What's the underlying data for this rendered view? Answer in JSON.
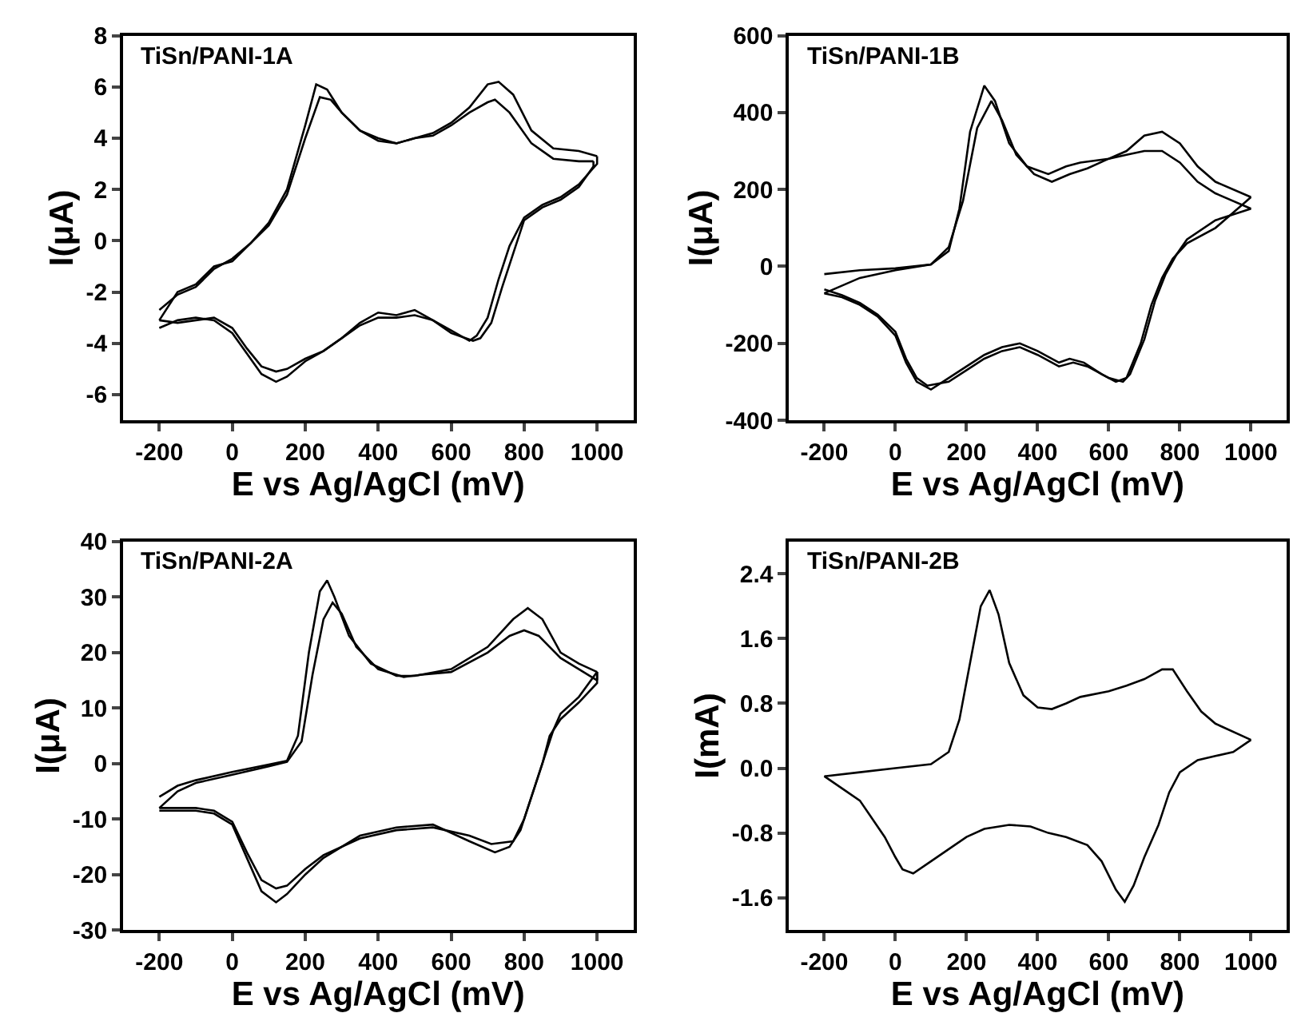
{
  "chart_data": [
    {
      "type": "line",
      "title": "TiSn/PANI-1A",
      "xlabel": "E vs Ag/AgCl (mV)",
      "ylabel": "I(μA)",
      "xlim": [
        -300,
        1100
      ],
      "xticks": [
        -200,
        0,
        200,
        400,
        600,
        800,
        1000
      ],
      "ylim": [
        -7,
        8
      ],
      "yticks": [
        -6,
        -4,
        -2,
        0,
        2,
        4,
        6,
        8
      ],
      "grid": false,
      "marker": "none",
      "line_style": "solid",
      "series": [
        {
          "color": "#000000",
          "x": [
            -200,
            -150,
            -100,
            -50,
            0,
            50,
            100,
            150,
            200,
            230,
            260,
            300,
            350,
            400,
            450,
            500,
            550,
            600,
            650,
            700,
            730,
            770,
            820,
            880,
            950,
            1000
          ],
          "values": [
            -2.7,
            -2.1,
            -1.8,
            -1.1,
            -0.7,
            -0.1,
            0.7,
            2.0,
            4.5,
            6.1,
            5.9,
            5.0,
            4.3,
            4.0,
            3.8,
            4.0,
            4.2,
            4.6,
            5.2,
            6.1,
            6.2,
            5.7,
            4.3,
            3.6,
            3.5,
            3.3
          ]
        },
        {
          "color": "#000000",
          "x": [
            1000,
            1000,
            950,
            900,
            850,
            800,
            760,
            730,
            700,
            670,
            650,
            600,
            550,
            500,
            450,
            400,
            350,
            300,
            250,
            200,
            150,
            120,
            80,
            40,
            0,
            -50,
            -100,
            -150,
            -200
          ],
          "values": [
            3.3,
            3.0,
            2.2,
            1.7,
            1.4,
            0.9,
            -0.2,
            -1.5,
            -3.0,
            -3.7,
            -3.9,
            -3.5,
            -3.1,
            -2.7,
            -2.9,
            -2.8,
            -3.2,
            -3.8,
            -4.3,
            -4.7,
            -5.3,
            -5.5,
            -5.2,
            -4.4,
            -3.6,
            -3.1,
            -3.0,
            -3.1,
            -3.4
          ]
        },
        {
          "color": "#000000",
          "x": [
            -200,
            -150,
            -100,
            -50,
            0,
            50,
            100,
            150,
            200,
            240,
            270,
            300,
            350,
            400,
            450,
            500,
            550,
            600,
            650,
            700,
            720,
            760,
            820,
            880,
            950,
            990
          ],
          "values": [
            -3.1,
            -2.0,
            -1.7,
            -1.0,
            -0.8,
            -0.1,
            0.6,
            1.8,
            4.0,
            5.6,
            5.5,
            5.0,
            4.3,
            3.9,
            3.8,
            4.0,
            4.1,
            4.5,
            5.0,
            5.4,
            5.5,
            5.0,
            3.8,
            3.2,
            3.1,
            3.1
          ]
        },
        {
          "color": "#000000",
          "x": [
            990,
            990,
            950,
            900,
            850,
            800,
            770,
            740,
            710,
            680,
            660,
            600,
            550,
            500,
            450,
            400,
            350,
            300,
            250,
            200,
            150,
            120,
            80,
            40,
            0,
            -50,
            -100,
            -150,
            -200
          ],
          "values": [
            3.1,
            2.9,
            2.1,
            1.6,
            1.3,
            0.8,
            -0.5,
            -1.8,
            -3.2,
            -3.8,
            -3.9,
            -3.6,
            -3.1,
            -2.9,
            -3.0,
            -3.0,
            -3.3,
            -3.8,
            -4.3,
            -4.6,
            -5.0,
            -5.1,
            -4.9,
            -4.2,
            -3.4,
            -3.0,
            -3.1,
            -3.2,
            -3.1
          ]
        }
      ]
    },
    {
      "type": "line",
      "title": "TiSn/PANI-1B",
      "xlabel": "E vs Ag/AgCl (mV)",
      "ylabel": "I(μA)",
      "xlim": [
        -300,
        1100
      ],
      "xticks": [
        -200,
        0,
        200,
        400,
        600,
        800,
        1000
      ],
      "ylim": [
        -400,
        600
      ],
      "yticks": [
        -400,
        -200,
        0,
        200,
        400,
        600
      ],
      "grid": false,
      "marker": "none",
      "line_style": "solid",
      "series": [
        {
          "color": "#000000",
          "x": [
            -200,
            -100,
            0,
            100,
            150,
            180,
            210,
            250,
            280,
            320,
            370,
            430,
            480,
            520,
            600,
            650,
            700,
            750,
            800,
            850,
            900,
            1000
          ],
          "values": [
            -20,
            -10,
            -5,
            5,
            40,
            150,
            350,
            470,
            430,
            320,
            260,
            240,
            260,
            270,
            280,
            300,
            340,
            350,
            320,
            260,
            220,
            180
          ]
        },
        {
          "color": "#000000",
          "x": [
            1000,
            900,
            820,
            780,
            750,
            720,
            690,
            650,
            620,
            580,
            530,
            490,
            460,
            400,
            350,
            300,
            250,
            200,
            150,
            100,
            60,
            30,
            0,
            -50,
            -100,
            -150,
            -200
          ],
          "values": [
            180,
            100,
            60,
            20,
            -30,
            -100,
            -200,
            -290,
            -300,
            -280,
            -250,
            -240,
            -250,
            -220,
            -200,
            -210,
            -230,
            -260,
            -290,
            -320,
            -300,
            -250,
            -180,
            -130,
            -100,
            -80,
            -70
          ]
        },
        {
          "color": "#000000",
          "x": [
            -200,
            -100,
            0,
            100,
            150,
            190,
            230,
            270,
            300,
            340,
            390,
            440,
            490,
            540,
            600,
            650,
            700,
            750,
            800,
            850,
            900,
            1000
          ],
          "values": [
            -70,
            -30,
            -10,
            5,
            50,
            170,
            360,
            430,
            380,
            290,
            240,
            220,
            240,
            255,
            280,
            290,
            300,
            300,
            270,
            220,
            190,
            150
          ]
        },
        {
          "color": "#000000",
          "x": [
            1000,
            900,
            820,
            790,
            760,
            730,
            700,
            660,
            640,
            600,
            540,
            500,
            460,
            400,
            350,
            300,
            250,
            200,
            150,
            90,
            60,
            30,
            0,
            -50,
            -100,
            -150,
            -200
          ],
          "values": [
            150,
            120,
            70,
            30,
            -20,
            -90,
            -190,
            -280,
            -300,
            -290,
            -260,
            -250,
            -260,
            -230,
            -210,
            -220,
            -240,
            -270,
            -300,
            -310,
            -290,
            -240,
            -170,
            -125,
            -95,
            -75,
            -60
          ]
        }
      ]
    },
    {
      "type": "line",
      "title": "TiSn/PANI-2A",
      "xlabel": "E vs Ag/AgCl (mV)",
      "ylabel": "I(μA)",
      "xlim": [
        -300,
        1100
      ],
      "xticks": [
        -200,
        0,
        200,
        400,
        600,
        800,
        1000
      ],
      "ylim": [
        -30,
        40
      ],
      "yticks": [
        -30,
        -20,
        -10,
        0,
        10,
        20,
        30,
        40
      ],
      "grid": false,
      "marker": "none",
      "line_style": "solid",
      "series": [
        {
          "color": "#000000",
          "x": [
            -200,
            -150,
            -100,
            0,
            100,
            150,
            180,
            210,
            240,
            260,
            280,
            320,
            380,
            450,
            500,
            600,
            700,
            770,
            810,
            850,
            900,
            950,
            1000
          ],
          "values": [
            -6,
            -4,
            -3,
            -1.5,
            -0.2,
            0.5,
            5,
            20,
            31,
            33,
            30,
            23,
            18,
            15.8,
            15.8,
            17,
            21,
            26,
            28,
            26,
            20,
            18,
            16.5
          ]
        },
        {
          "color": "#000000",
          "x": [
            1000,
            1000,
            950,
            900,
            870,
            850,
            820,
            790,
            760,
            720,
            650,
            550,
            450,
            350,
            250,
            200,
            150,
            120,
            80,
            40,
            0,
            -50,
            -100,
            -200
          ],
          "values": [
            16.5,
            14.5,
            11,
            8,
            5,
            0,
            -6,
            -12,
            -15,
            -16,
            -14,
            -11,
            -11.5,
            -13,
            -17,
            -20,
            -23.5,
            -25,
            -23,
            -17,
            -11,
            -9,
            -8.5,
            -8.5
          ]
        },
        {
          "color": "#000000",
          "x": [
            -200,
            -150,
            -100,
            0,
            100,
            150,
            190,
            220,
            250,
            275,
            300,
            340,
            400,
            470,
            520,
            600,
            700,
            760,
            800,
            840,
            900,
            950,
            1000
          ],
          "values": [
            -8,
            -5,
            -3.5,
            -2,
            -0.5,
            0.3,
            4,
            16,
            26,
            29,
            27,
            21,
            17,
            15.6,
            16,
            16.5,
            20,
            23,
            24,
            23,
            19,
            17,
            15
          ]
        },
        {
          "color": "#000000",
          "x": [
            1000,
            1000,
            950,
            900,
            880,
            860,
            830,
            800,
            770,
            710,
            650,
            550,
            450,
            350,
            250,
            200,
            150,
            120,
            80,
            40,
            0,
            -50,
            -100,
            -200
          ],
          "values": [
            15,
            16.5,
            12,
            9,
            6,
            2,
            -4,
            -10,
            -14,
            -14.5,
            -13,
            -11.5,
            -12,
            -13.5,
            -16.5,
            -19,
            -22,
            -22.5,
            -21,
            -16,
            -10.5,
            -8.5,
            -8,
            -8
          ]
        }
      ]
    },
    {
      "type": "line",
      "title": "TiSn/PANI-2B",
      "xlabel": "E vs Ag/AgCl (mV)",
      "ylabel": "I(mA)",
      "xlim": [
        -300,
        1100
      ],
      "xticks": [
        -200,
        0,
        200,
        400,
        600,
        800,
        1000
      ],
      "ylim": [
        -2.0,
        2.8
      ],
      "yticks": [
        -1.6,
        -0.8,
        {
          "value": 0,
          "label": "0.0"
        },
        0.8,
        1.6,
        2.4
      ],
      "grid": false,
      "marker": "none",
      "line_style": "solid",
      "series": [
        {
          "color": "#000000",
          "x": [
            -200,
            -100,
            0,
            100,
            150,
            180,
            210,
            240,
            265,
            290,
            320,
            360,
            400,
            440,
            480,
            520,
            600,
            650,
            700,
            750,
            780,
            820,
            860,
            900,
            1000
          ],
          "values": [
            -0.1,
            -0.05,
            0.0,
            0.05,
            0.2,
            0.6,
            1.3,
            2.0,
            2.2,
            1.9,
            1.3,
            0.9,
            0.75,
            0.73,
            0.8,
            0.88,
            0.95,
            1.02,
            1.1,
            1.22,
            1.22,
            0.95,
            0.7,
            0.55,
            0.35
          ]
        },
        {
          "color": "#000000",
          "x": [
            1000,
            950,
            900,
            850,
            800,
            770,
            740,
            700,
            670,
            645,
            620,
            580,
            540,
            480,
            430,
            380,
            320,
            250,
            200,
            150,
            100,
            50,
            20,
            0,
            -30,
            -100,
            -150,
            -200
          ],
          "values": [
            0.35,
            0.2,
            0.15,
            0.1,
            -0.05,
            -0.3,
            -0.7,
            -1.1,
            -1.45,
            -1.65,
            -1.5,
            -1.15,
            -0.95,
            -0.85,
            -0.8,
            -0.72,
            -0.7,
            -0.75,
            -0.85,
            -1.0,
            -1.15,
            -1.3,
            -1.25,
            -1.1,
            -0.85,
            -0.4,
            -0.25,
            -0.1
          ]
        }
      ]
    }
  ]
}
